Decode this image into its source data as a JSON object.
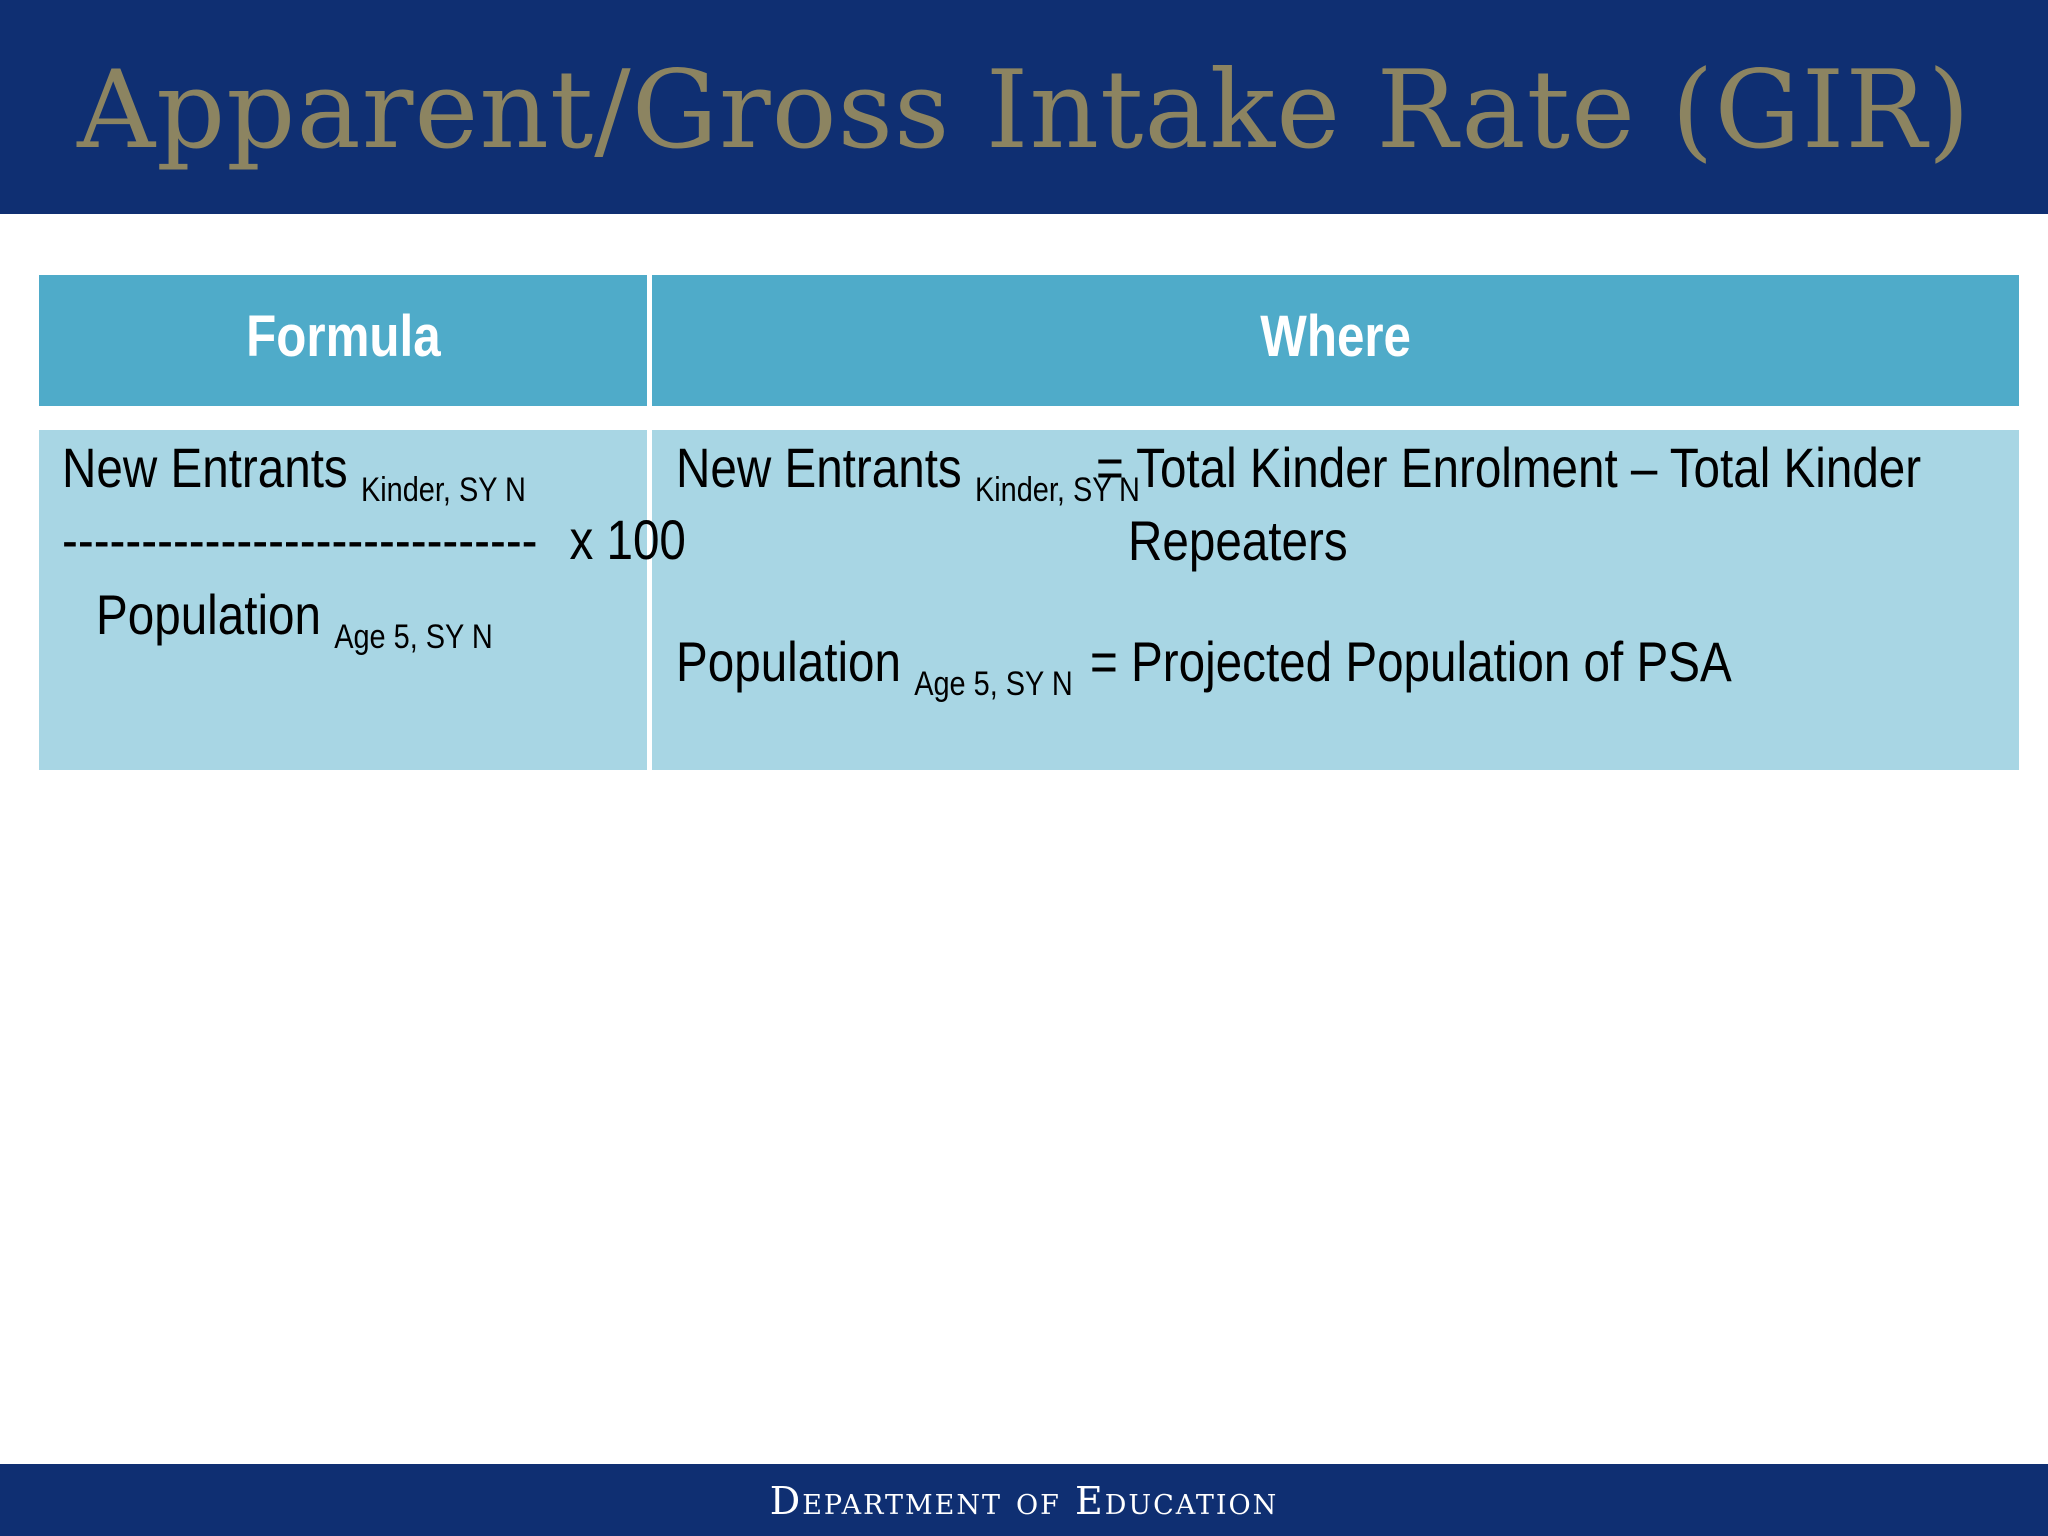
{
  "slide": {
    "title": "Apparent/Gross Intake Rate (GIR)",
    "footer": "Department of Education"
  },
  "table": {
    "headers": {
      "formula": "Formula",
      "where": "Where"
    },
    "formula": {
      "numerator": "New Entrants",
      "numerator_sub": "Kinder, SY N",
      "divider": "------------------------------",
      "multiplier": "x  100",
      "denominator": "Population",
      "denominator_sub": "Age 5, SY N"
    },
    "definitions": [
      {
        "term": "New Entrants",
        "term_sub": "Kinder, SY N",
        "equals": "= Total Kinder Enrolment – Total Kinder",
        "continued": "Repeaters"
      },
      {
        "term": "Population",
        "term_sub": "Age 5, SY N",
        "equals": "= Projected Population of PSA"
      }
    ]
  }
}
